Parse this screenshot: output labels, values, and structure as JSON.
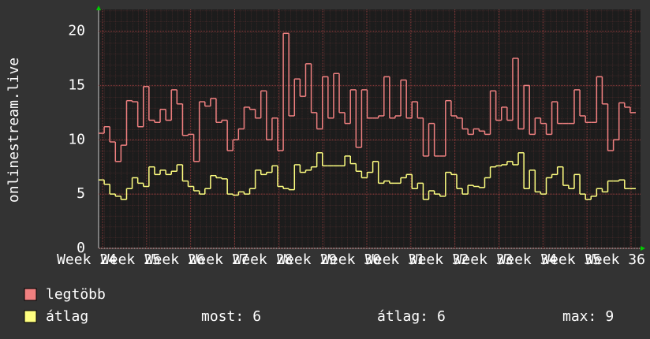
{
  "chart_data": {
    "type": "line",
    "step": true,
    "y_label": "onlinestream.live",
    "ylim": [
      0,
      22
    ],
    "yticks": [
      0,
      5,
      10,
      15,
      20
    ],
    "grid": true,
    "week_labels": [
      "Week 24",
      "Week 25",
      "Week 26",
      "Week 27",
      "Week 28",
      "Week 29",
      "Week 30",
      "Week 31",
      "Week 32",
      "Week 33",
      "Week 34",
      "Week 35",
      "Week 36"
    ],
    "series": [
      {
        "name": "legtöbb",
        "color": "#f08080",
        "values": [
          10.6,
          11.2,
          9.8,
          8,
          9.5,
          13.6,
          13.5,
          11.2,
          14.9,
          11.8,
          11.6,
          12.8,
          11.8,
          14.6,
          13.3,
          10.4,
          10.5,
          8,
          13.5,
          13.1,
          13.8,
          11.6,
          11.8,
          9,
          10,
          11,
          13,
          12.8,
          12,
          14.5,
          10,
          12,
          9,
          19.8,
          12.2,
          15.6,
          14,
          17,
          12.5,
          11,
          15.8,
          12,
          16.1,
          12.5,
          11.5,
          14.6,
          9.3,
          14.6,
          12,
          12,
          12.2,
          15.8,
          12,
          12.2,
          15.5,
          12,
          13.5,
          12,
          8.5,
          11.5,
          8.5,
          8.5,
          13.6,
          12.2,
          12,
          11,
          10.5,
          11,
          10.8,
          10.5,
          14.5,
          11.8,
          13,
          11.8,
          17.5,
          11,
          15,
          10.5,
          12,
          11.5,
          10.5,
          13.5,
          11.5,
          11.5,
          11.5,
          14.6,
          12.2,
          11.6,
          11.6,
          15.8,
          13.3,
          9,
          10,
          13.4,
          13,
          12.5
        ]
      },
      {
        "name": "átlag",
        "color": "#ffff80",
        "values": [
          6.3,
          5.9,
          5,
          4.8,
          4.5,
          5.5,
          6.5,
          6,
          5.7,
          7.5,
          6.8,
          7.2,
          6.8,
          7.1,
          7.7,
          6.2,
          5.7,
          5.3,
          5,
          5.5,
          6.7,
          6.5,
          6.4,
          5,
          4.9,
          5.2,
          5,
          5.5,
          7.2,
          6.8,
          7,
          7.6,
          5.7,
          5.5,
          5.4,
          7.7,
          7,
          7.2,
          7.5,
          8.8,
          7.6,
          7.6,
          7.6,
          7.6,
          8.5,
          7.8,
          7.1,
          6.5,
          7,
          8,
          6,
          6.2,
          6,
          6,
          6.5,
          6.8,
          5.5,
          6,
          4.5,
          5.3,
          5,
          4.8,
          7,
          6.8,
          5.5,
          5,
          5.8,
          5.7,
          5.6,
          6.5,
          7.5,
          7.6,
          7.7,
          8,
          7.7,
          8.8,
          5.5,
          7.2,
          5.2,
          5,
          6.5,
          6.8,
          7.5,
          5.8,
          5.5,
          6.8,
          5,
          4.5,
          4.8,
          5.5,
          5.2,
          6.2,
          6.2,
          6.3,
          5.5,
          5.5
        ]
      }
    ],
    "stats": [
      {
        "label": "most:",
        "value": 6
      },
      {
        "label": "átlag:",
        "value": 6
      },
      {
        "label": "max:",
        "value": 9
      }
    ]
  }
}
